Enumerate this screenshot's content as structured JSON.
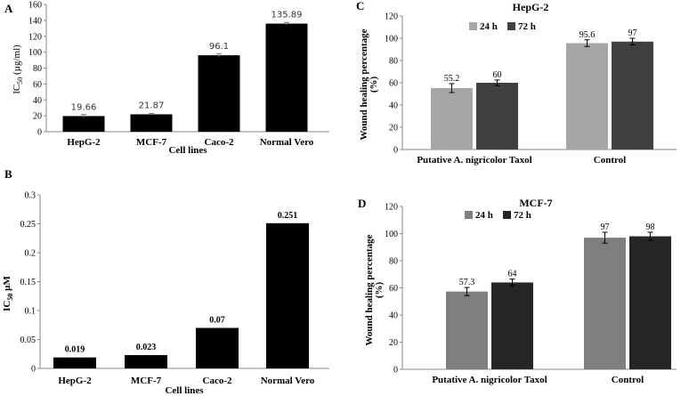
{
  "chart_data": [
    {
      "panel": "A",
      "type": "bar",
      "ylabel": "IC",
      "ylabel_sub": "50",
      "ylabel_unit": " (µg/ml)",
      "xlabel": "Cell lines",
      "categories": [
        "HepG-2",
        "MCF-7",
        "Caco-2",
        "Normal Vero"
      ],
      "values": [
        19.66,
        21.87,
        96.1,
        135.89
      ],
      "errors": [
        2,
        1,
        2,
        1.5
      ],
      "data_labels": [
        "19.66",
        "21.87",
        "96.1",
        "135.89"
      ],
      "ylim": [
        0,
        160
      ],
      "yticks": [
        0,
        20,
        40,
        60,
        80,
        100,
        120,
        140,
        160
      ],
      "bar_color": "#000000"
    },
    {
      "panel": "B",
      "type": "bar",
      "ylabel": "IC",
      "ylabel_sub": "50",
      "ylabel_unit": " µM",
      "xlabel": "Cell lines",
      "categories": [
        "HepG-2",
        "MCF-7",
        "Caco-2",
        "Normal Vero"
      ],
      "values": [
        0.019,
        0.023,
        0.07,
        0.251
      ],
      "data_labels": [
        "0.019",
        "0.023",
        "0.07",
        "0.251"
      ],
      "ylim": [
        0,
        0.3
      ],
      "yticks": [
        0,
        0.05,
        0.1,
        0.15,
        0.2,
        0.25,
        0.3
      ],
      "ytick_labels": [
        "0",
        "0.05",
        "0.1",
        "0.15",
        "0.2",
        "0.25",
        "0.3"
      ],
      "bar_color": "#000000"
    },
    {
      "panel": "C",
      "type": "bar",
      "title": "HepG-2",
      "ylabel_line1": "Wound healing percentage",
      "ylabel_line2": "(%)",
      "categories": [
        "Putative A. nigricolor Taxol",
        "Control"
      ],
      "series": [
        {
          "name": "24 h",
          "values": [
            55.2,
            95.6
          ],
          "errors": [
            4,
            3
          ],
          "color": "#a6a6a6"
        },
        {
          "name": "72 h",
          "values": [
            60,
            97
          ],
          "errors": [
            2.5,
            3
          ],
          "color": "#404040"
        }
      ],
      "data_labels": [
        [
          "55.2",
          "95.6"
        ],
        [
          "60",
          "97"
        ]
      ],
      "ylim": [
        0,
        120
      ],
      "yticks": [
        0,
        20,
        40,
        60,
        80,
        100,
        120
      ],
      "legend": "top"
    },
    {
      "panel": "D",
      "type": "bar",
      "title": "MCF-7",
      "ylabel_line1": "Wound healing percentage",
      "ylabel_line2": "(%)",
      "categories": [
        "Putative A. nigricolor Taxol",
        "Control"
      ],
      "series": [
        {
          "name": "24 h",
          "values": [
            57.3,
            97
          ],
          "errors": [
            3,
            4
          ],
          "color": "#7f7f7f"
        },
        {
          "name": "72 h",
          "values": [
            64,
            98
          ],
          "errors": [
            2.5,
            3
          ],
          "color": "#262626"
        }
      ],
      "data_labels": [
        [
          "57.3",
          "97"
        ],
        [
          "64",
          "98"
        ]
      ],
      "ylim": [
        0,
        120
      ],
      "yticks": [
        0,
        20,
        40,
        60,
        80,
        100,
        120
      ],
      "legend": "top"
    }
  ]
}
